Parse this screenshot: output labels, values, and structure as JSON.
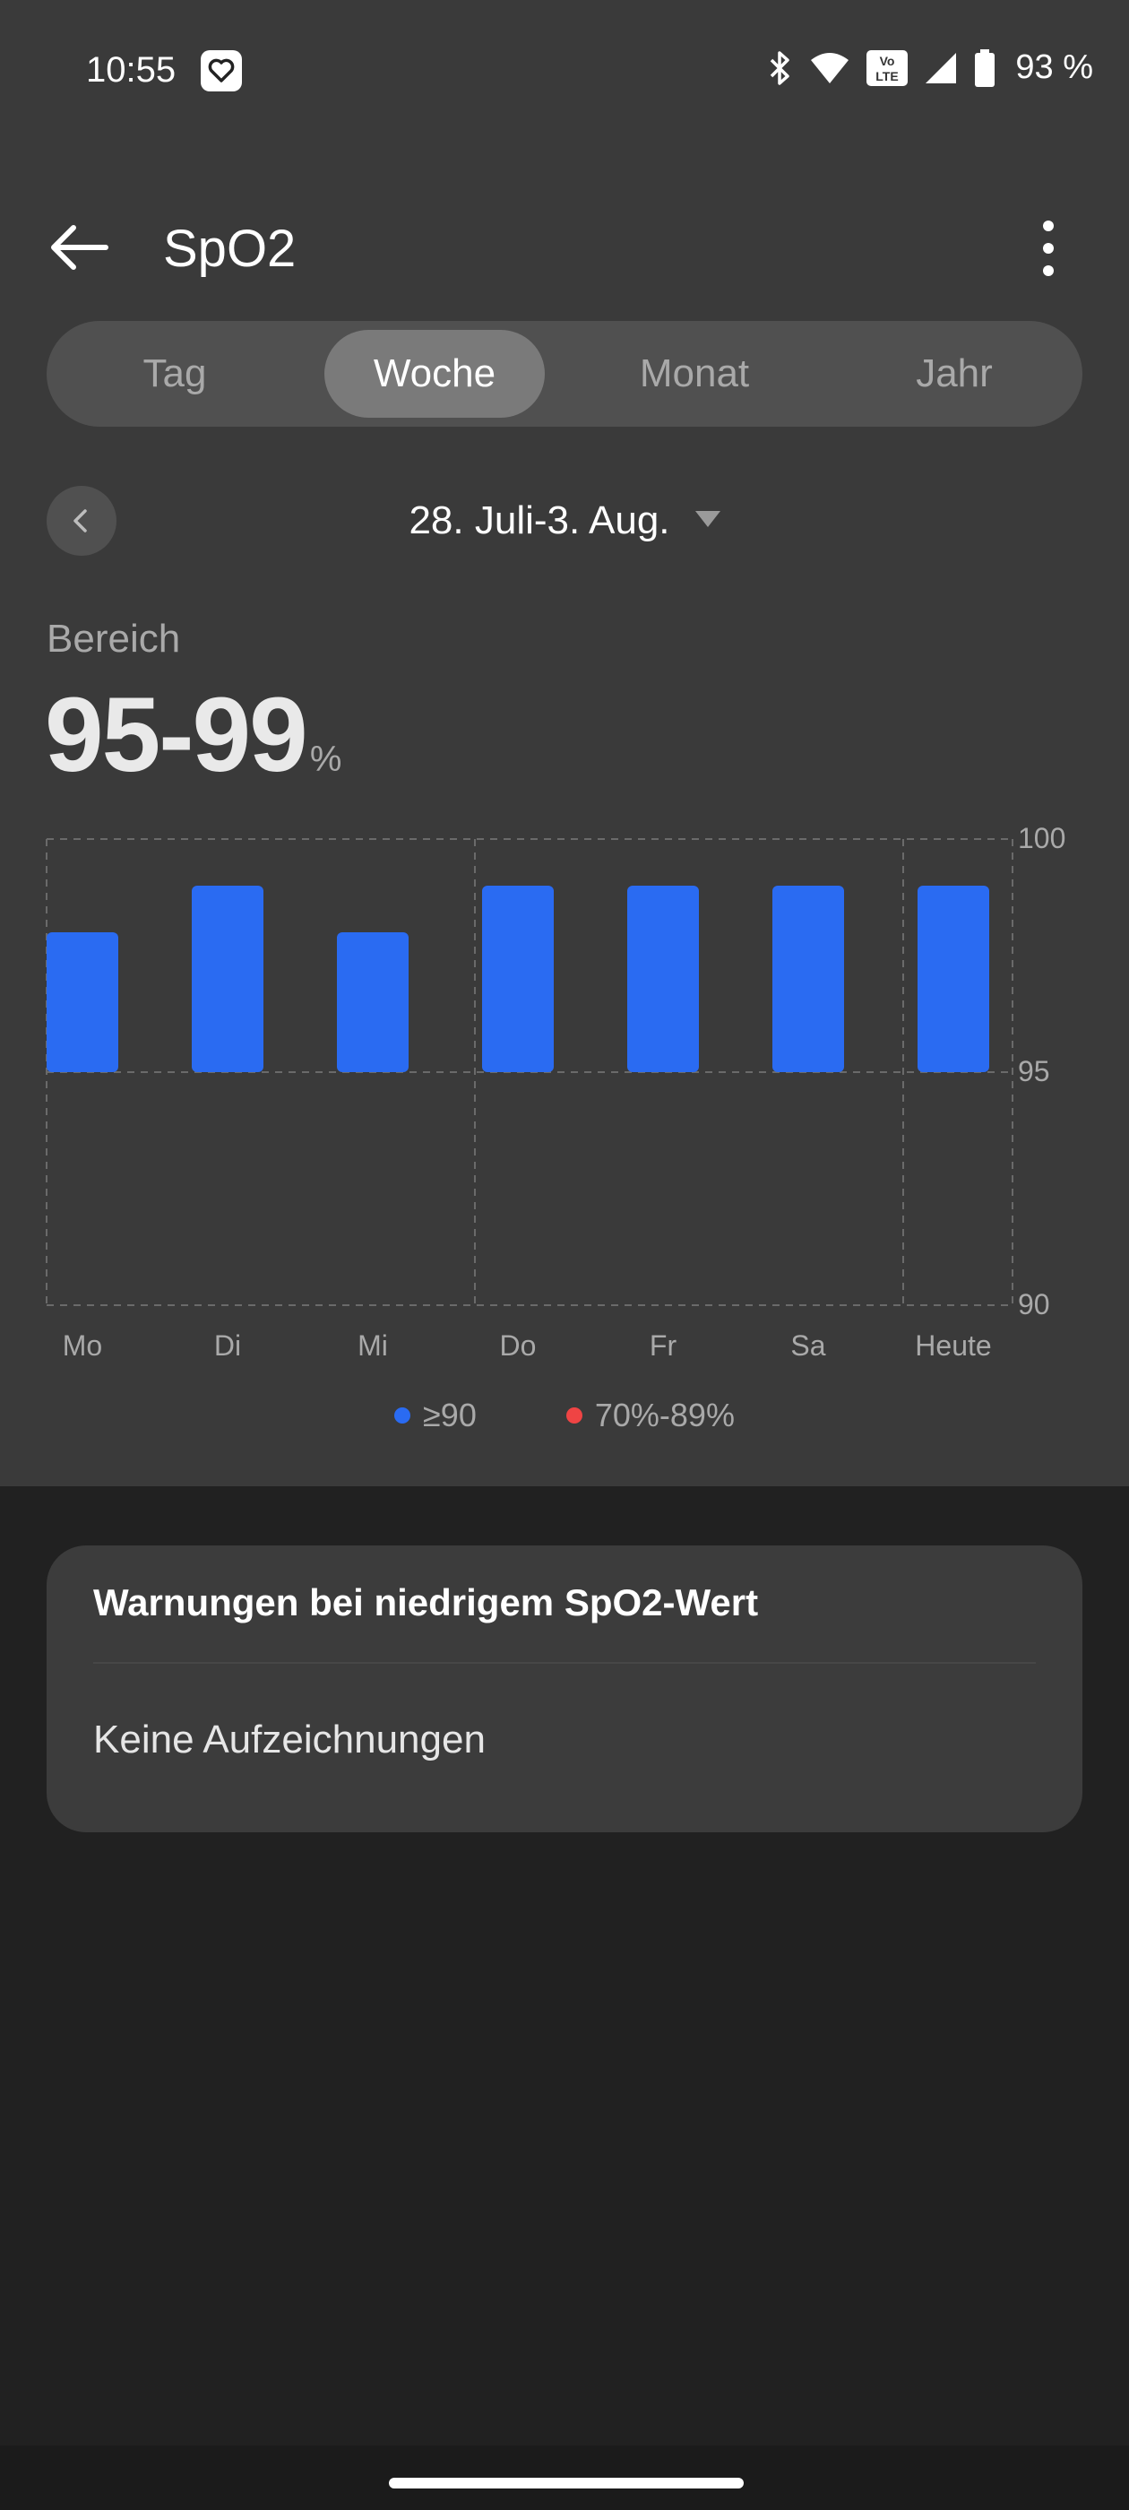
{
  "status_bar": {
    "time": "10:55",
    "battery": "93 %",
    "icons": [
      "heart-app-icon",
      "bluetooth-icon",
      "wifi-icon",
      "volte-icon",
      "signal-icon",
      "battery-icon"
    ],
    "volte_text": "Vo LTE"
  },
  "header": {
    "title": "SpO2",
    "back_icon": "arrow-left-icon",
    "menu_icon": "more-vertical-icon"
  },
  "tabs": [
    {
      "label": "Tag",
      "active": false
    },
    {
      "label": "Woche",
      "active": true
    },
    {
      "label": "Monat",
      "active": false
    },
    {
      "label": "Jahr",
      "active": false
    }
  ],
  "date_nav": {
    "range": "28. Juli-3. Aug.",
    "prev_icon": "chevron-left-icon",
    "dropdown_icon": "caret-down-icon"
  },
  "summary": {
    "label": "Bereich",
    "value": "95-99",
    "unit": "%"
  },
  "chart_data": {
    "type": "bar",
    "categories": [
      "Mo",
      "Di",
      "Mi",
      "Do",
      "Fr",
      "Sa",
      "Heute"
    ],
    "series": [
      {
        "name": "≥90",
        "color": "#2a6bf2",
        "low": [
          95,
          95,
          95,
          95,
          95,
          95,
          95
        ],
        "high": [
          98,
          99,
          98,
          99,
          99,
          99,
          99
        ]
      }
    ],
    "y_ticks": [
      "100",
      "95",
      "90"
    ],
    "ylim": [
      90,
      100
    ],
    "grid": true,
    "legend": [
      {
        "label": "≥90",
        "color": "#2a6bf2"
      },
      {
        "label": "70%-89%",
        "color": "#ef4444"
      }
    ]
  },
  "warnings_card": {
    "title": "Warnungen bei niedrigem SpO2-Wert",
    "empty_text": "Keine Aufzeichnungen"
  },
  "colors": {
    "accent_blue": "#2a6bf2",
    "warning_red": "#ef4444",
    "background_top": "#3a3a3a",
    "background_bottom": "#212121"
  }
}
